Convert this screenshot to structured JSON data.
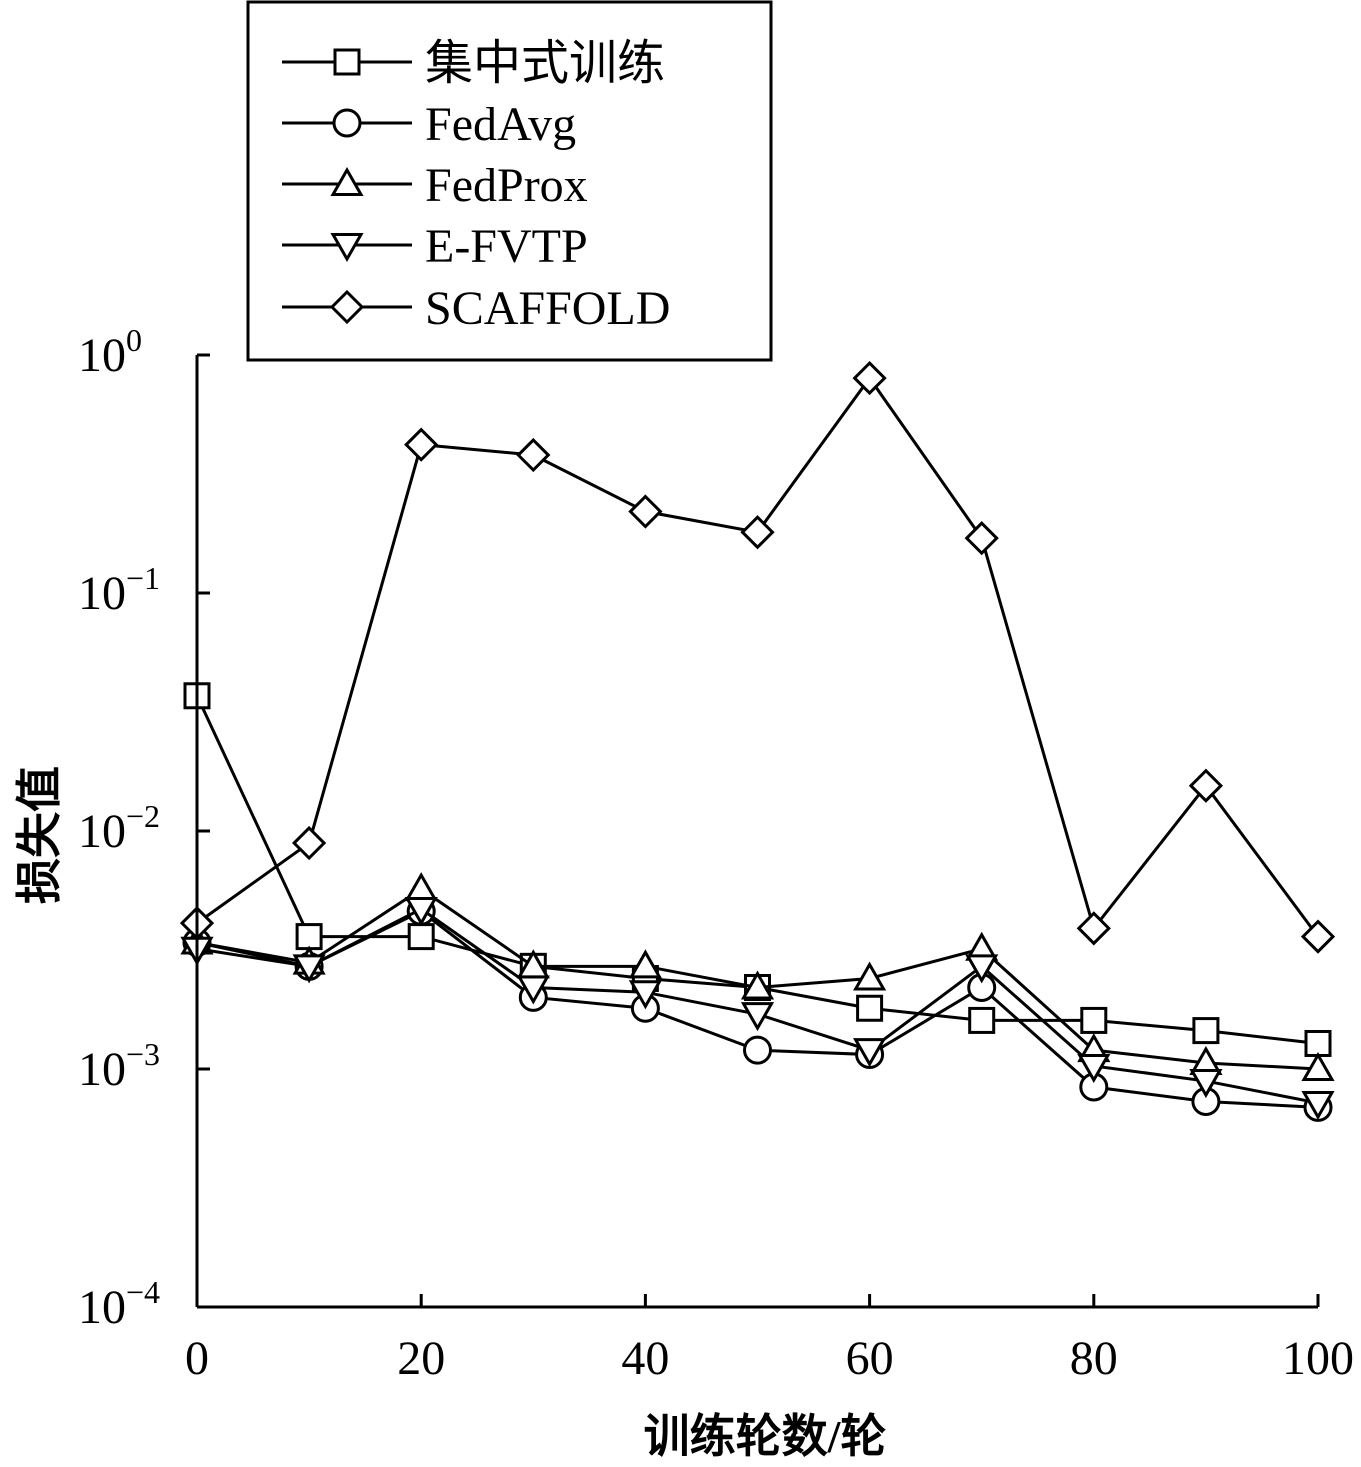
{
  "chart_data": {
    "type": "line",
    "title": "",
    "xlabel": "训练轮数/轮",
    "ylabel": "损失值",
    "xlim": [
      0,
      100
    ],
    "ylim": [
      0.0001,
      1
    ],
    "y_scale": "log",
    "grid": false,
    "legend_position": "top-left",
    "x": [
      0,
      10,
      20,
      30,
      40,
      50,
      60,
      70,
      80,
      90,
      100
    ],
    "x_ticks": [
      0,
      20,
      40,
      60,
      80,
      100
    ],
    "x_tick_labels": [
      "0",
      "20",
      "40",
      "60",
      "80",
      "100"
    ],
    "y_ticks": [
      {
        "value": 1,
        "base": "10",
        "exp": "0"
      },
      {
        "value": 0.1,
        "base": "10",
        "exp": "−1"
      },
      {
        "value": 0.01,
        "base": "10",
        "exp": "−2"
      },
      {
        "value": 0.001,
        "base": "10",
        "exp": "−3"
      },
      {
        "value": 0.0001,
        "base": "10",
        "exp": "−4"
      }
    ],
    "series": [
      {
        "name": "集中式训练",
        "marker": "square",
        "values": [
          0.037,
          0.0036,
          0.0036,
          0.0027,
          0.0024,
          0.0022,
          0.0018,
          0.0016,
          0.0016,
          0.00145,
          0.00128
        ]
      },
      {
        "name": "FedAvg",
        "marker": "circle",
        "values": [
          0.0034,
          0.0027,
          0.0046,
          0.002,
          0.0018,
          0.0012,
          0.00115,
          0.0022,
          0.00084,
          0.00073,
          0.00069
        ]
      },
      {
        "name": "FedProx",
        "marker": "triangle-up",
        "values": [
          0.0034,
          0.0028,
          0.0057,
          0.0027,
          0.0027,
          0.0022,
          0.0024,
          0.0032,
          0.0012,
          0.00106,
          0.001
        ]
      },
      {
        "name": "E-FVTP",
        "marker": "triangle-down",
        "values": [
          0.0032,
          0.0027,
          0.0047,
          0.0022,
          0.0021,
          0.0017,
          0.0012,
          0.0027,
          0.00103,
          0.00089,
          0.00072
        ]
      },
      {
        "name": "SCAFFOLD",
        "marker": "diamond",
        "values": [
          0.0041,
          0.0089,
          0.42,
          0.38,
          0.22,
          0.18,
          0.8,
          0.17,
          0.0039,
          0.0155,
          0.0036
        ]
      }
    ]
  }
}
